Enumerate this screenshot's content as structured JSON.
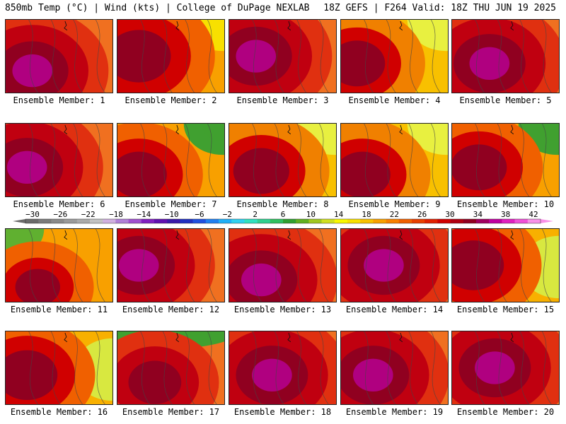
{
  "header": {
    "left": "850mb Temp (°C) | Wind (kts) | College of DuPage NEXLAB",
    "right": "18Z GEFS | F264 Valid: 18Z THU JUN 19 2025"
  },
  "panels": [
    {
      "label": "Ensemble Member: 1",
      "row": 0,
      "col": 0,
      "theme": "hot",
      "blob": [
        0.25,
        0.7
      ]
    },
    {
      "label": "Ensemble Member: 2",
      "row": 0,
      "col": 1,
      "theme": "warmNE",
      "blob": [
        0.2,
        0.5
      ]
    },
    {
      "label": "Ensemble Member: 3",
      "row": 0,
      "col": 2,
      "theme": "hot",
      "blob": [
        0.25,
        0.5
      ]
    },
    {
      "label": "Ensemble Member: 4",
      "row": 0,
      "col": 3,
      "theme": "mild",
      "blob": [
        0.15,
        0.6
      ]
    },
    {
      "label": "Ensemble Member: 5",
      "row": 0,
      "col": 4,
      "theme": "hot",
      "blob": [
        0.35,
        0.6
      ]
    },
    {
      "label": "Ensemble Member: 6",
      "row": 1,
      "col": 0,
      "theme": "hot",
      "blob": [
        0.2,
        0.6
      ]
    },
    {
      "label": "Ensemble Member: 7",
      "row": 1,
      "col": 1,
      "theme": "coolNE",
      "blob": [
        0.2,
        0.7
      ]
    },
    {
      "label": "Ensemble Member: 8",
      "row": 1,
      "col": 2,
      "theme": "mild",
      "blob": [
        0.3,
        0.65
      ]
    },
    {
      "label": "Ensemble Member: 9",
      "row": 1,
      "col": 3,
      "theme": "mild",
      "blob": [
        0.2,
        0.7
      ]
    },
    {
      "label": "Ensemble Member: 10",
      "row": 1,
      "col": 4,
      "theme": "coolNE",
      "blob": [
        0.25,
        0.6
      ]
    },
    {
      "label": "Ensemble Member: 11",
      "row": 2,
      "col": 0,
      "theme": "coolNW",
      "blob": [
        0.3,
        0.8
      ]
    },
    {
      "label": "Ensemble Member: 12",
      "row": 2,
      "col": 1,
      "theme": "hot",
      "blob": [
        0.2,
        0.5
      ]
    },
    {
      "label": "Ensemble Member: 13",
      "row": 2,
      "col": 2,
      "theme": "hot",
      "blob": [
        0.3,
        0.7
      ]
    },
    {
      "label": "Ensemble Member: 14",
      "row": 2,
      "col": 3,
      "theme": "hot",
      "blob": [
        0.4,
        0.5
      ]
    },
    {
      "label": "Ensemble Member: 15",
      "row": 2,
      "col": 4,
      "theme": "coolE",
      "blob": [
        0.2,
        0.5
      ]
    },
    {
      "label": "Ensemble Member: 16",
      "row": 3,
      "col": 0,
      "theme": "coolE",
      "blob": [
        0.2,
        0.6
      ]
    },
    {
      "label": "Ensemble Member: 17",
      "row": 3,
      "col": 1,
      "theme": "coolN",
      "blob": [
        0.35,
        0.7
      ]
    },
    {
      "label": "Ensemble Member: 18",
      "row": 3,
      "col": 2,
      "theme": "hot",
      "blob": [
        0.4,
        0.6
      ]
    },
    {
      "label": "Ensemble Member: 19",
      "row": 3,
      "col": 3,
      "theme": "hot",
      "blob": [
        0.3,
        0.6
      ]
    },
    {
      "label": "Ensemble Member: 20",
      "row": 3,
      "col": 4,
      "theme": "hot",
      "blob": [
        0.4,
        0.5
      ]
    }
  ],
  "colorbar": {
    "tick_labels": [
      "−30",
      "−26",
      "−22",
      "−18",
      "−14",
      "−10",
      "−6",
      "−2",
      "2",
      "6",
      "10",
      "14",
      "18",
      "22",
      "26",
      "30",
      "34",
      "38",
      "42"
    ],
    "colors": [
      "#6a6a6a",
      "#7a7a7a",
      "#8a8a8a",
      "#9a9a9a",
      "#aaaaaa",
      "#c2c2c2",
      "#d0b0e0",
      "#b080d8",
      "#a050d0",
      "#8020c0",
      "#6010b0",
      "#3a1aa8",
      "#2030c0",
      "#2050e0",
      "#2080f0",
      "#20b0f8",
      "#30d0f0",
      "#30e0c0",
      "#30d090",
      "#30c060",
      "#30a030",
      "#60b020",
      "#a0c820",
      "#d0e020",
      "#f8f800",
      "#f8e000",
      "#f8c000",
      "#f8a000",
      "#f88000",
      "#f06000",
      "#e84000",
      "#e02000",
      "#d00000",
      "#b00010",
      "#900020",
      "#a00060",
      "#c000a0",
      "#e020c0",
      "#f050d8",
      "#f890e8"
    ]
  }
}
